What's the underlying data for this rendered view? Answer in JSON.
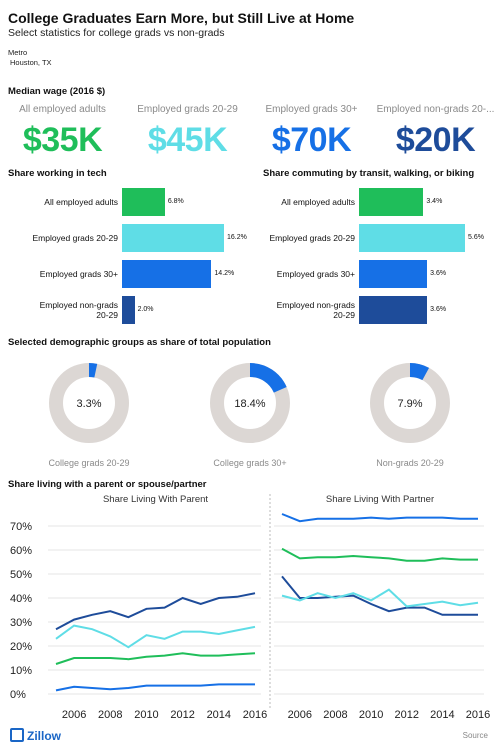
{
  "header": {
    "title": "College Graduates Earn More, but Still Live at Home",
    "subtitle": "Select statistics for college grads vs non-grads",
    "metro_label": "Metro",
    "metro_value": "Houston, TX"
  },
  "colors": {
    "all_adults": "#1fbe5a",
    "grads_20_29": "#5fdde6",
    "grads_30_plus": "#1670e6",
    "non_grads": "#1e4c9a",
    "donut_rest": "#dcd7d4",
    "donut_fill": "#1670e6",
    "zillow_blue": "#1a66c6"
  },
  "wage": {
    "title": "Median wage (2016 $)",
    "items": [
      {
        "label": "All employed adults",
        "value": "$35K",
        "color": "#1fbe5a"
      },
      {
        "label": "Employed grads 20-29",
        "value": "$45K",
        "color": "#5fdde6"
      },
      {
        "label": "Employed grads 30+",
        "value": "$70K",
        "color": "#1670e6"
      },
      {
        "label": "Employed non-grads 20-...",
        "value": "$20K",
        "color": "#1e4c9a"
      }
    ]
  },
  "tech": {
    "title": "Share working in tech",
    "max": 16.2,
    "items": [
      {
        "label": "All employed adults",
        "value": 6.8,
        "text": "6.8%",
        "color": "#1fbe5a"
      },
      {
        "label": "Employed grads 20-29",
        "value": 16.2,
        "text": "16.2%",
        "color": "#5fdde6"
      },
      {
        "label": "Employed grads 30+",
        "value": 14.2,
        "text": "14.2%",
        "color": "#1670e6"
      },
      {
        "label": "Employed non-grads 20-29",
        "value": 2.0,
        "text": "2.0%",
        "color": "#1e4c9a"
      }
    ]
  },
  "transit": {
    "title": "Share commuting by transit, walking, or biking",
    "max": 5.6,
    "items": [
      {
        "label": "All employed adults",
        "value": 3.4,
        "text": "3.4%",
        "color": "#1fbe5a"
      },
      {
        "label": "Employed grads 20-29",
        "value": 5.6,
        "text": "5.6%",
        "color": "#5fdde6"
      },
      {
        "label": "Employed grads 30+",
        "value": 3.6,
        "text": "3.6%",
        "color": "#1670e6"
      },
      {
        "label": "Employed non-grads 20-29",
        "value": 3.6,
        "text": "3.6%",
        "color": "#1e4c9a"
      }
    ]
  },
  "demographics": {
    "title": "Selected demographic groups as share of total population",
    "items": [
      {
        "label": "College grads 20-29",
        "value": 3.3,
        "text": "3.3%"
      },
      {
        "label": "College grads 30+",
        "value": 18.4,
        "text": "18.4%"
      },
      {
        "label": "Non-grads 20-29",
        "value": 7.9,
        "text": "7.9%"
      }
    ]
  },
  "living": {
    "title": "Share living with a parent or spouse/partner"
  },
  "chart_data": {
    "type": "line",
    "panels": [
      {
        "title": "Share Living With Parent",
        "x": [
          2005,
          2006,
          2007,
          2008,
          2009,
          2010,
          2011,
          2012,
          2013,
          2014,
          2015,
          2016
        ],
        "series": [
          {
            "color": "#1e4c9a",
            "values": [
              27,
              31,
              33,
              34.5,
              32,
              35.5,
              36,
              40,
              37.5,
              40,
              40.5,
              42
            ]
          },
          {
            "color": "#5fdde6",
            "values": [
              23,
              28.5,
              27,
              24,
              19.5,
              24.5,
              23,
              26,
              26,
              25,
              26.5,
              28
            ]
          },
          {
            "color": "#1fbe5a",
            "values": [
              12.5,
              15,
              15,
              15,
              14.5,
              15.5,
              16,
              17,
              16,
              16,
              16.5,
              17
            ]
          },
          {
            "color": "#1670e6",
            "values": [
              1.5,
              3,
              2.5,
              2,
              2.5,
              3.5,
              3.5,
              3.5,
              3.5,
              4,
              4,
              4
            ]
          }
        ]
      },
      {
        "title": "Share Living With Partner",
        "x": [
          2005,
          2006,
          2007,
          2008,
          2009,
          2010,
          2011,
          2012,
          2013,
          2014,
          2015,
          2016
        ],
        "series": [
          {
            "color": "#1670e6",
            "values": [
              75,
              72,
              73,
              73,
              73,
              73.5,
              73,
              73.5,
              73.5,
              73.5,
              73,
              73
            ]
          },
          {
            "color": "#1fbe5a",
            "values": [
              60.5,
              56.5,
              57,
              57,
              57.5,
              57,
              56.5,
              55.5,
              55.5,
              56.5,
              56,
              56
            ]
          },
          {
            "color": "#1e4c9a",
            "values": [
              49,
              40,
              40,
              40.5,
              41,
              37.5,
              34.5,
              36,
              36,
              33,
              33,
              33
            ]
          },
          {
            "color": "#5fdde6",
            "values": [
              41,
              39,
              42,
              40,
              42,
              39,
              43.5,
              36.5,
              37.5,
              38.5,
              37,
              38
            ]
          }
        ]
      }
    ],
    "yticks": [
      0,
      10,
      20,
      30,
      40,
      50,
      60,
      70
    ],
    "ytick_labels": [
      "0%",
      "10%",
      "20%",
      "30%",
      "40%",
      "50%",
      "60%",
      "70%"
    ],
    "xticks": [
      2006,
      2008,
      2010,
      2012,
      2014,
      2016
    ],
    "xtick_labels": [
      "2006",
      "2008",
      "2010",
      "2012",
      "2014",
      "2016"
    ],
    "ylim": [
      0,
      78
    ]
  },
  "footer": {
    "logo": "Zillow",
    "source": "Source"
  }
}
